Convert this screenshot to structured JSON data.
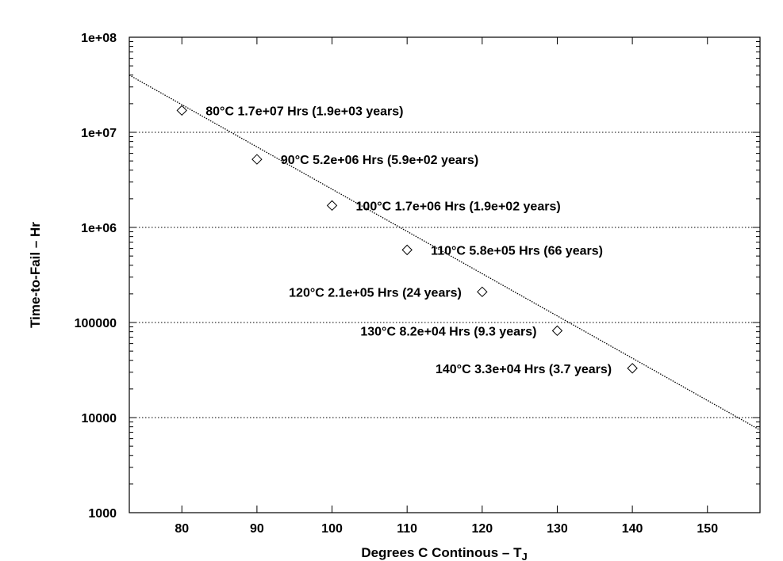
{
  "chart_data": {
    "type": "scatter",
    "title": "",
    "xlabel": "Degrees C Continous – T",
    "xlabel_sub": "J",
    "ylabel": "Time-to-Fail – Hr",
    "xlim": [
      73,
      157
    ],
    "ylim": [
      1000,
      100000000
    ],
    "y_scale": "log",
    "x_ticks": [
      80,
      90,
      100,
      110,
      120,
      130,
      140,
      150
    ],
    "x_tick_labels": [
      "80",
      "90",
      "100",
      "110",
      "120",
      "130",
      "140",
      "150"
    ],
    "y_ticks": [
      1000,
      10000,
      100000,
      1000000,
      10000000,
      100000000
    ],
    "y_tick_labels": [
      "1000",
      "10000",
      "100000",
      "1e+06",
      "1e+07",
      "1e+08"
    ],
    "grid": "horizontal dotted at y ticks",
    "series": [
      {
        "type": "line",
        "style": "dotted",
        "x": [
          73,
          157
        ],
        "y": [
          40000000,
          7400
        ]
      },
      {
        "type": "scatter",
        "marker": "diamond",
        "x": [
          80,
          90,
          100,
          110,
          120,
          130,
          140
        ],
        "y": [
          17000000,
          5200000,
          1700000,
          580000,
          210000,
          82000,
          33000
        ]
      }
    ],
    "annotations": [
      {
        "text": "80°C 1.7e+07 Hrs (1.9e+03 years)",
        "x": 80,
        "y": 17000000,
        "anchor": "right"
      },
      {
        "text": "90°C 5.2e+06 Hrs (5.9e+02 years)",
        "x": 90,
        "y": 5200000,
        "anchor": "right"
      },
      {
        "text": "100°C 1.7e+06 Hrs (1.9e+02 years)",
        "x": 100,
        "y": 1700000,
        "anchor": "right"
      },
      {
        "text": "110°C 5.8e+05 Hrs (66 years)",
        "x": 110,
        "y": 580000,
        "anchor": "right"
      },
      {
        "text": "120°C 2.1e+05 Hrs (24 years)",
        "x": 120,
        "y": 210000,
        "anchor": "left"
      },
      {
        "text": "130°C 8.2e+04 Hrs (9.3 years)",
        "x": 130,
        "y": 82000,
        "anchor": "left"
      },
      {
        "text": "140°C 3.3e+04 Hrs (3.7 years)",
        "x": 140,
        "y": 33000,
        "anchor": "left"
      }
    ]
  }
}
